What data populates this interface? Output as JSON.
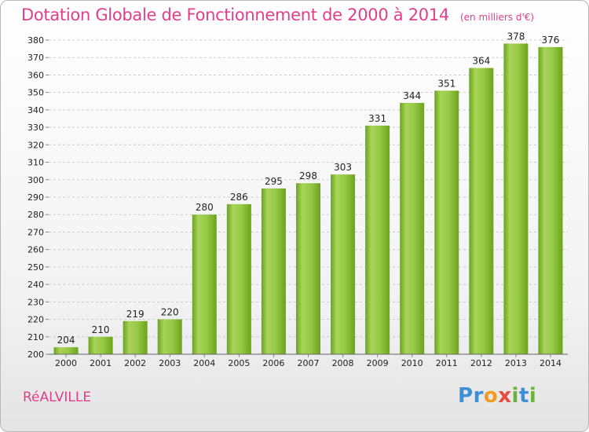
{
  "header": {
    "title": "Dotation Globale de Fonctionnement de 2000 à 2014",
    "subtitle": "(en milliers d'€)"
  },
  "footer": {
    "commune": "RéALVILLE",
    "brand": "Proxiti"
  },
  "colors": {
    "title": "#e0408a",
    "bar_light": "#a8d45a",
    "bar_dark": "#6aa51a",
    "grid": "#cccccc"
  },
  "chart_data": {
    "type": "bar",
    "title": "Dotation Globale de Fonctionnement de 2000 à 2014",
    "subtitle": "(en milliers d'€)",
    "xlabel": "",
    "ylabel": "",
    "categories": [
      "2000",
      "2001",
      "2002",
      "2003",
      "2004",
      "2005",
      "2006",
      "2007",
      "2008",
      "2009",
      "2010",
      "2011",
      "2012",
      "2013",
      "2014"
    ],
    "values": [
      204,
      210,
      219,
      220,
      280,
      286,
      295,
      298,
      303,
      331,
      344,
      351,
      364,
      378,
      376
    ],
    "ylim": [
      200,
      380
    ],
    "ytick_step": 10,
    "grid": true,
    "data_labels": true
  }
}
